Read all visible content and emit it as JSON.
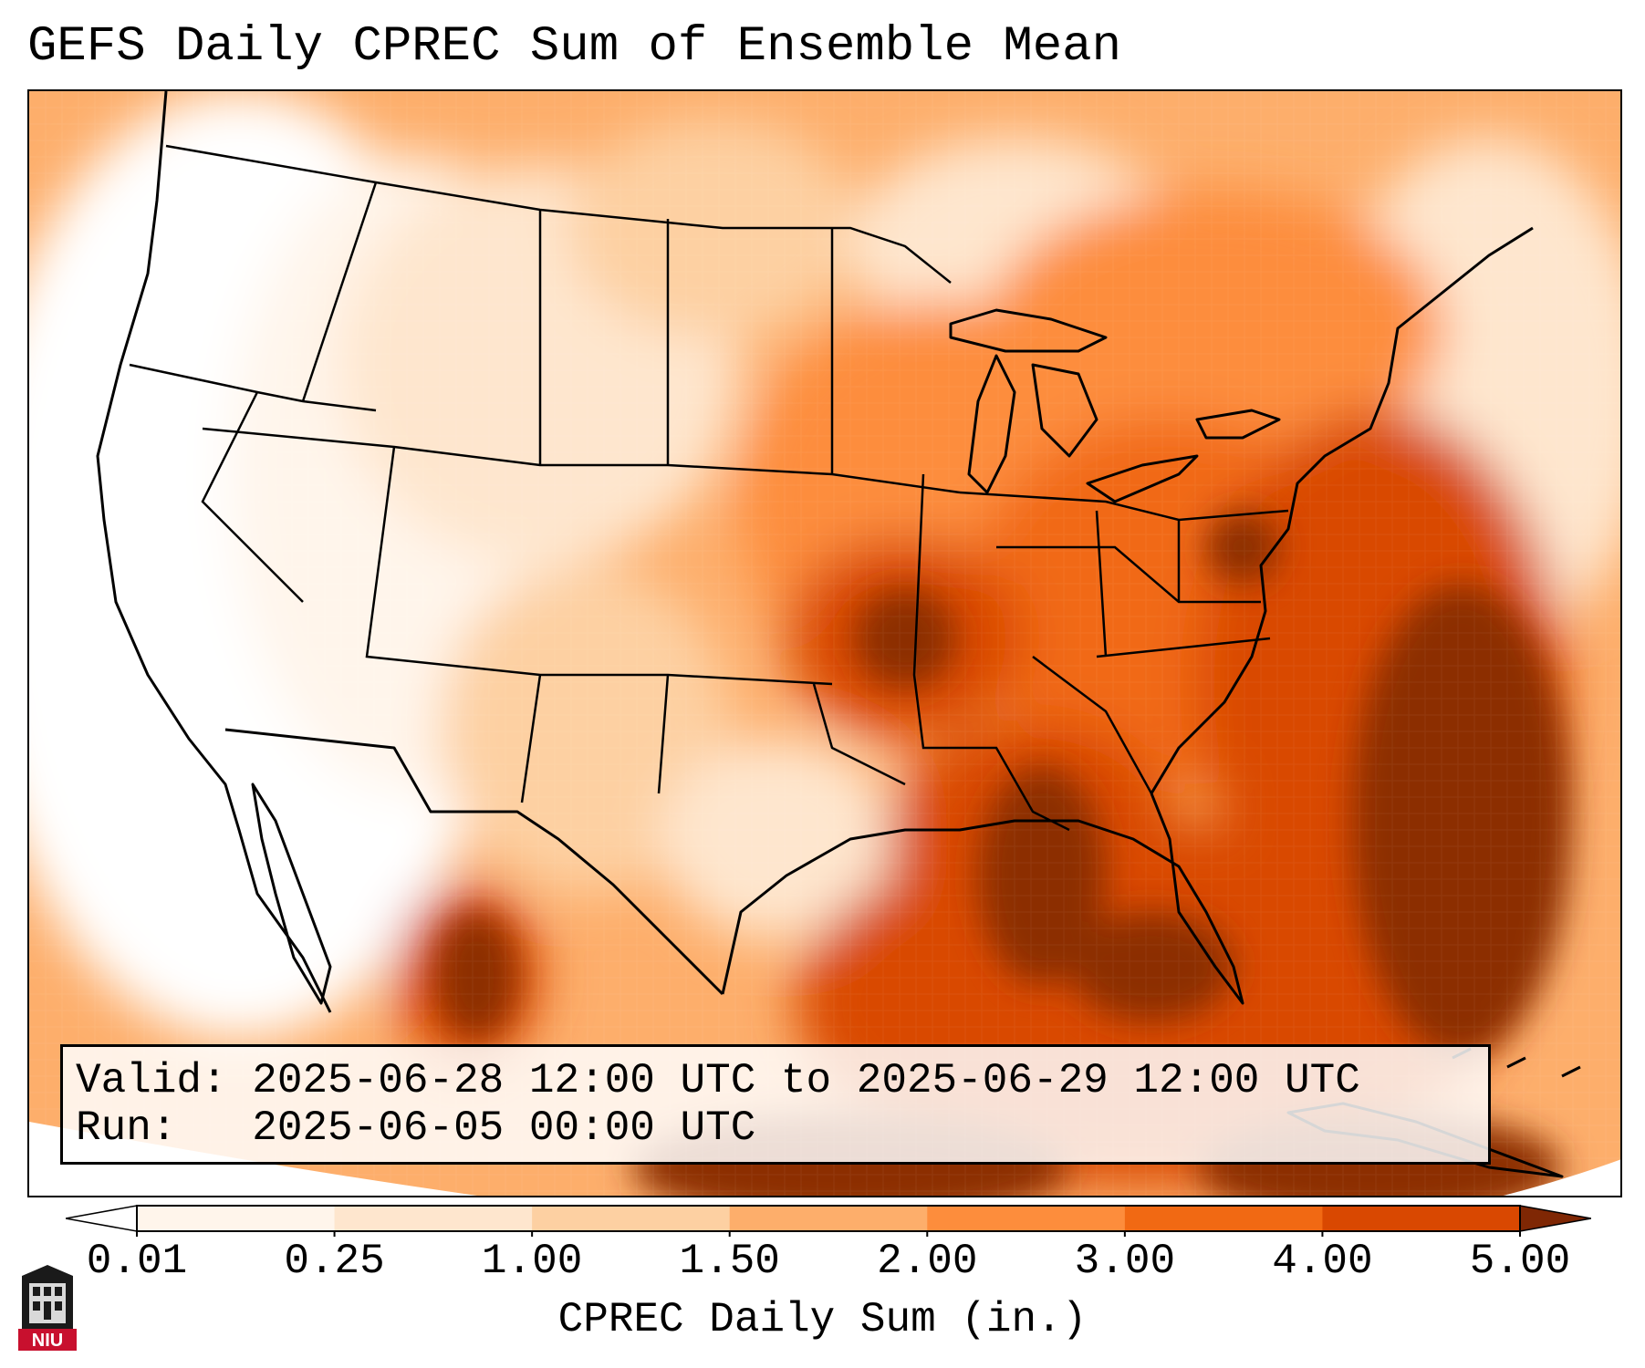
{
  "title": "GEFS Daily CPREC Sum of Ensemble Mean",
  "info": {
    "valid_line": "Valid: 2025-06-28 12:00 UTC to 2025-06-29 12:00 UTC",
    "run_line": "Run:   2025-06-05 00:00 UTC"
  },
  "colorbar": {
    "label": "CPREC Daily Sum (in.)",
    "ticks": [
      "0.01",
      "0.25",
      "1.00",
      "1.50",
      "2.00",
      "3.00",
      "4.00",
      "5.00"
    ],
    "colors": [
      "#fff5eb",
      "#fee6ce",
      "#fdd0a2",
      "#fdae6b",
      "#fd8d3c",
      "#f16913",
      "#d94801",
      "#8c2d04"
    ],
    "under_color": "#ffffff",
    "over_color": "#7f2704"
  },
  "logo": {
    "text": "NIU",
    "name": "niu-logo-icon"
  }
}
